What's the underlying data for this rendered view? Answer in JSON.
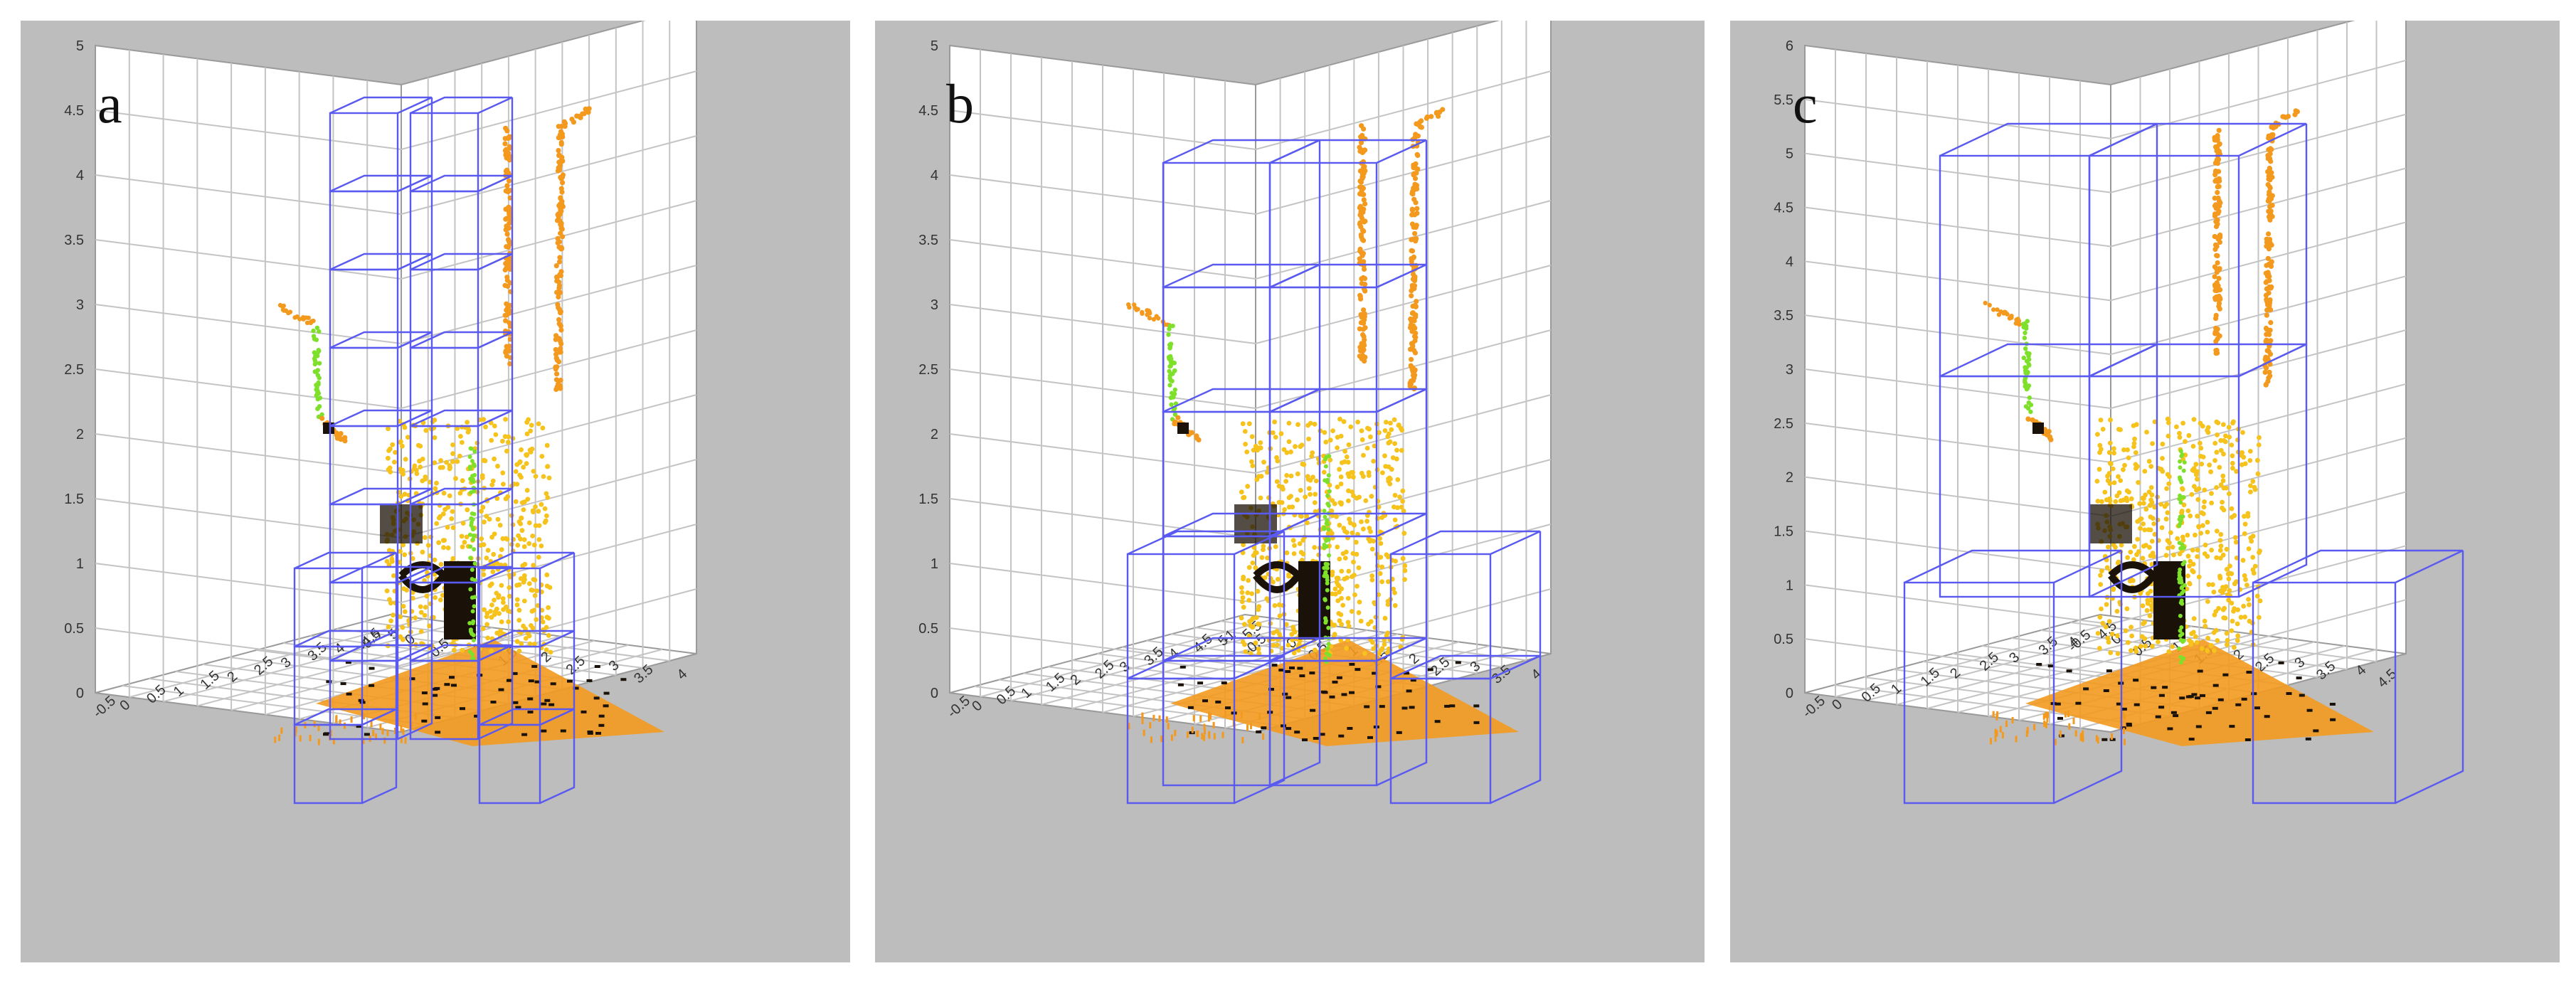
{
  "figure": {
    "panels": [
      {
        "label": "a",
        "z_ticks": [
          "0",
          "0.5",
          "1",
          "1.5",
          "2",
          "2.5",
          "3",
          "3.5",
          "4",
          "4.5",
          "5"
        ],
        "left_axis_ticks": [
          "-0.5",
          "0",
          "0.5",
          "1",
          "1.5",
          "2",
          "2.5",
          "3",
          "3.5",
          "4"
        ],
        "right_axis_ticks": [
          "-0.5",
          "0",
          "0.5",
          "1",
          "1.5",
          "2",
          "2.5",
          "3",
          "3.5",
          "4",
          "4.5",
          "5"
        ],
        "voxel_size": "0.5"
      },
      {
        "label": "b",
        "z_ticks": [
          "0",
          "0.5",
          "1",
          "1.5",
          "2",
          "2.5",
          "3",
          "3.5",
          "4",
          "4.5",
          "5"
        ],
        "left_axis_ticks": [
          "-1",
          "-0.5",
          "0",
          "0.5",
          "1",
          "1.5",
          "2",
          "2.5",
          "3",
          "3.5",
          "4"
        ],
        "right_axis_ticks": [
          "-0.5",
          "0",
          "0.5",
          "1",
          "1.5",
          "2",
          "2.5",
          "3",
          "3.5",
          "4",
          "4.5",
          "5",
          "5.5"
        ],
        "voxel_size": "1"
      },
      {
        "label": "c",
        "z_ticks": [
          "0",
          "0.5",
          "1",
          "1.5",
          "2",
          "2.5",
          "3",
          "3.5",
          "4",
          "4.5",
          "5",
          "5.5",
          "6"
        ],
        "left_axis_ticks": [
          "-0.5",
          "0",
          "0.5",
          "1",
          "1.5",
          "2",
          "2.5",
          "3",
          "3.5",
          "4",
          "4.5"
        ],
        "right_axis_ticks": [
          "-0.5",
          "0",
          "0.5",
          "1",
          "1.5",
          "2",
          "2.5",
          "3",
          "3.5",
          "4",
          "4.5"
        ],
        "voxel_size": "2"
      }
    ],
    "colors": {
      "panel_background": "#bdbdbd",
      "axis_planes": "#ffffff",
      "grid": "#c4c4c4",
      "voxel_wireframe": "#5a5af0",
      "point_cloud_orange": "#f39a1e",
      "point_cloud_yellow": "#f6c21c",
      "point_cloud_green": "#7ee02a",
      "point_cloud_dark": "#1a1208",
      "tick_text": "#333333"
    }
  }
}
